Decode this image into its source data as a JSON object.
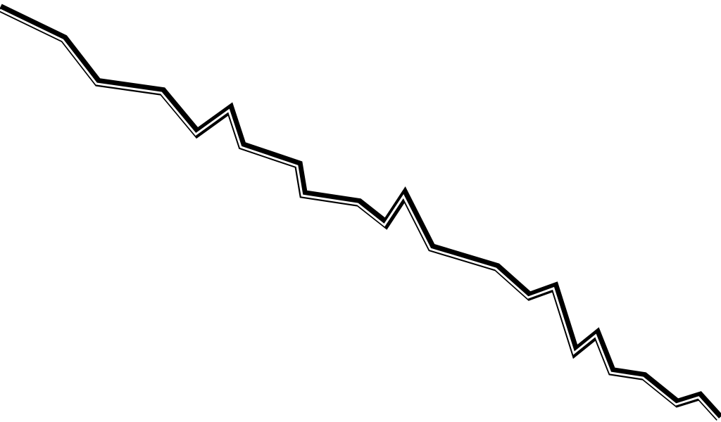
{
  "canvas": {
    "background_color": "#ffffff",
    "line_color": "#000000"
  }
}
